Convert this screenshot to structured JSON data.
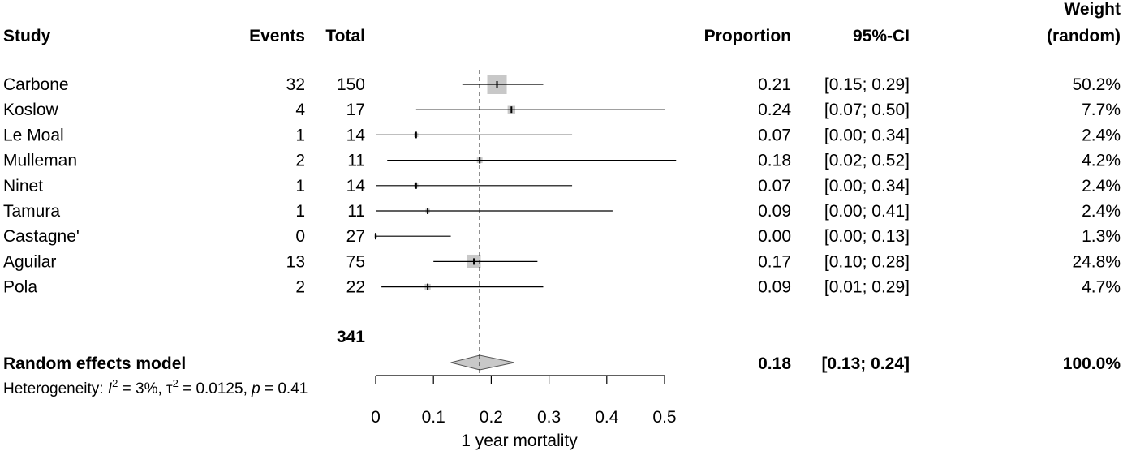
{
  "chart_data": {
    "type": "forest",
    "headers": {
      "study": "Study",
      "events": "Events",
      "total": "Total",
      "proportion": "Proportion",
      "ci": "95%-CI",
      "weight_line1": "Weight",
      "weight_line2": "(random)"
    },
    "studies": [
      {
        "name": "Carbone",
        "events": "32",
        "total": "150",
        "prop": 0.21,
        "lo": 0.15,
        "hi": 0.29,
        "prop_text": "0.21",
        "ci_text": "[0.15; 0.29]",
        "weight": 50.2,
        "weight_text": "50.2%"
      },
      {
        "name": "Koslow",
        "events": "4",
        "total": "17",
        "prop": 0.235,
        "lo": 0.07,
        "hi": 0.5,
        "prop_text": "0.24",
        "ci_text": "[0.07; 0.50]",
        "weight": 7.7,
        "weight_text": "7.7%"
      },
      {
        "name": "Le Moal",
        "events": "1",
        "total": "14",
        "prop": 0.07,
        "lo": 0.0,
        "hi": 0.34,
        "prop_text": "0.07",
        "ci_text": "[0.00; 0.34]",
        "weight": 2.4,
        "weight_text": "2.4%"
      },
      {
        "name": "Mulleman",
        "events": "2",
        "total": "11",
        "prop": 0.18,
        "lo": 0.02,
        "hi": 0.52,
        "prop_text": "0.18",
        "ci_text": "[0.02; 0.52]",
        "weight": 4.2,
        "weight_text": "4.2%"
      },
      {
        "name": "Ninet",
        "events": "1",
        "total": "14",
        "prop": 0.07,
        "lo": 0.0,
        "hi": 0.34,
        "prop_text": "0.07",
        "ci_text": "[0.00; 0.34]",
        "weight": 2.4,
        "weight_text": "2.4%"
      },
      {
        "name": "Tamura",
        "events": "1",
        "total": "11",
        "prop": 0.09,
        "lo": 0.0,
        "hi": 0.41,
        "prop_text": "0.09",
        "ci_text": "[0.00; 0.41]",
        "weight": 2.4,
        "weight_text": "2.4%"
      },
      {
        "name": "Castagne'",
        "events": "0",
        "total": "27",
        "prop": 0.0,
        "lo": 0.0,
        "hi": 0.13,
        "prop_text": "0.00",
        "ci_text": "[0.00; 0.13]",
        "weight": 1.3,
        "weight_text": "1.3%"
      },
      {
        "name": "Aguilar",
        "events": "13",
        "total": "75",
        "prop": 0.17,
        "lo": 0.1,
        "hi": 0.28,
        "prop_text": "0.17",
        "ci_text": "[0.10; 0.28]",
        "weight": 24.8,
        "weight_text": "24.8%"
      },
      {
        "name": "Pola",
        "events": "2",
        "total": "22",
        "prop": 0.09,
        "lo": 0.01,
        "hi": 0.29,
        "prop_text": "0.09",
        "ci_text": "[0.01; 0.29]",
        "weight": 4.7,
        "weight_text": "4.7%"
      }
    ],
    "total_n": "341",
    "summary": {
      "label": "Random effects model",
      "prop": 0.18,
      "lo": 0.13,
      "hi": 0.24,
      "prop_text": "0.18",
      "ci_text": "[0.13; 0.24]",
      "weight_text": "100.0%"
    },
    "heterogeneity": {
      "prefix": "Heterogeneity: ",
      "i2_symbol": "I",
      "i2_value": " = 3%, ",
      "tau2_symbol": "τ",
      "tau2_value": " = 0.0125, ",
      "p_symbol": "p",
      "p_value": " = 0.41",
      "sup": "2"
    },
    "x_axis": {
      "label": "1 year mortality",
      "range": [
        0,
        0.5
      ],
      "ticks": [
        0,
        0.1,
        0.2,
        0.3,
        0.4,
        0.5
      ],
      "tick_labels": [
        "0",
        "0.1",
        "0.2",
        "0.3",
        "0.4",
        "0.5"
      ]
    },
    "reference_line": 0.18,
    "colors": {
      "box": "#c8c8c8",
      "diamond": "#c8c8c8",
      "line": "#000000"
    }
  }
}
